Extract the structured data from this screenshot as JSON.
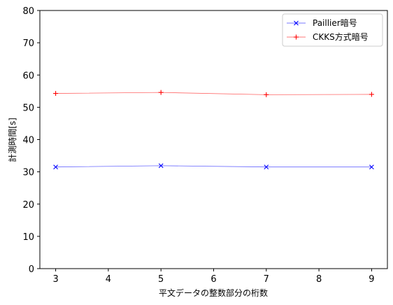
{
  "chart_data": {
    "type": "line",
    "x": [
      3,
      5,
      7,
      9
    ],
    "series": [
      {
        "name": "Paillier暗号",
        "values": [
          31.5,
          31.9,
          31.5,
          31.5
        ],
        "color": "#0000ff",
        "marker": "x"
      },
      {
        "name": "CKKS方式暗号",
        "values": [
          54.3,
          54.6,
          53.9,
          54.0
        ],
        "color": "#ff0000",
        "marker": "+"
      }
    ],
    "xlabel": "平文データの整数部分の桁数",
    "ylabel": "計測時間[s]",
    "xlim": [
      2.7,
      9.3
    ],
    "ylim": [
      0,
      80
    ],
    "xticks": [
      3,
      4,
      5,
      6,
      7,
      8,
      9
    ],
    "yticks": [
      0,
      10,
      20,
      30,
      40,
      50,
      60,
      70,
      80
    ],
    "grid": false,
    "legend_position": "top-right"
  }
}
